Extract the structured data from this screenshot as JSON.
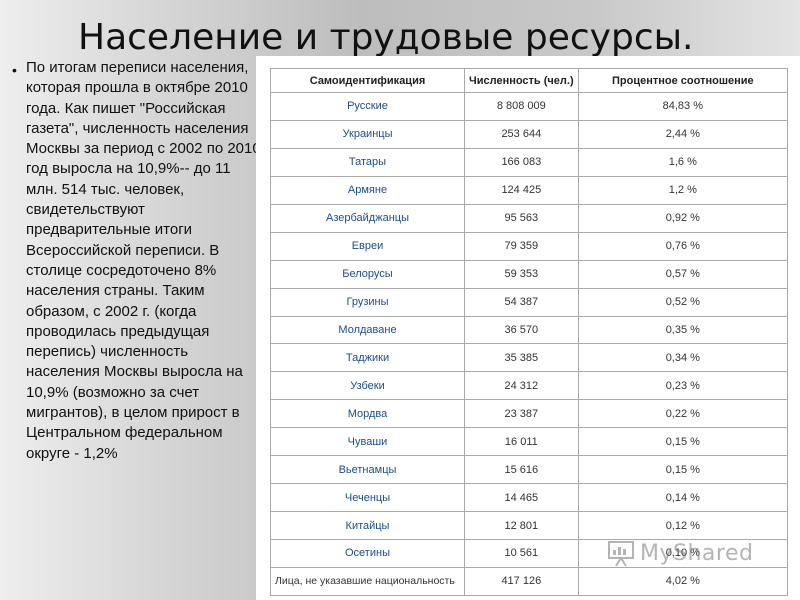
{
  "slide": {
    "title": "Население и трудовые ресурсы.",
    "bullet": "По итогам переписи населения, которая прошла в октябре 2010 года. Как пишет \"Российская газета\", численность населения Москвы за период с 2002 по 2010 год выросла на 10,9%-- до 11 млн. 514 тыс. человек, свидетельствуют предварительные итоги Всероссийской переписи. В столице сосредоточено 8% населения страны. Таким образом, с 2002 г. (когда проводилась предыдущая перепись) численность населения Москвы выросла на 10,9% (возможно за счет мигрантов), в целом прирост в Центральном федеральном округе - 1,2%"
  },
  "table": {
    "headers": [
      "Самоидентификация",
      "Численность (чел.)",
      "Процентное соотношение"
    ],
    "rows": [
      {
        "name": "Русские",
        "count": "8 808 009",
        "percent": "84,83 %"
      },
      {
        "name": "Украинцы",
        "count": "253 644",
        "percent": "2,44 %"
      },
      {
        "name": "Татары",
        "count": "166 083",
        "percent": "1,6 %"
      },
      {
        "name": "Армяне",
        "count": "124 425",
        "percent": "1,2 %"
      },
      {
        "name": "Азербайджанцы",
        "count": "95 563",
        "percent": "0,92 %"
      },
      {
        "name": "Евреи",
        "count": "79 359",
        "percent": "0,76 %"
      },
      {
        "name": "Белорусы",
        "count": "59 353",
        "percent": "0,57 %"
      },
      {
        "name": "Грузины",
        "count": "54 387",
        "percent": "0,52 %"
      },
      {
        "name": "Молдаване",
        "count": "36 570",
        "percent": "0,35 %"
      },
      {
        "name": "Таджики",
        "count": "35 385",
        "percent": "0,34 %"
      },
      {
        "name": "Узбеки",
        "count": "24 312",
        "percent": "0,23 %"
      },
      {
        "name": "Мордва",
        "count": "23 387",
        "percent": "0,22 %"
      },
      {
        "name": "Чуваши",
        "count": "16 011",
        "percent": "0,15 %"
      },
      {
        "name": "Вьетнамцы",
        "count": "15 616",
        "percent": "0,15 %"
      },
      {
        "name": "Чеченцы",
        "count": "14 465",
        "percent": "0,14 %"
      },
      {
        "name": "Китайцы",
        "count": "12 801",
        "percent": "0,12 %"
      },
      {
        "name": "Осетины",
        "count": "10 561",
        "percent": "0,10 %"
      },
      {
        "name": "Лица, не указавшие национальность",
        "count": "417 126",
        "percent": "4,02 %"
      }
    ]
  },
  "watermark": {
    "text": "MyShared",
    "icon": "presentation-board-icon"
  }
}
